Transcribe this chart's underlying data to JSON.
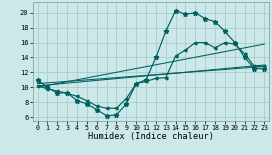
{
  "xlabel": "Humidex (Indice chaleur)",
  "bg_color": "#cce8e8",
  "grid_color": "#aacccc",
  "line_color": "#006060",
  "xlim": [
    -0.5,
    23.5
  ],
  "ylim": [
    5.5,
    21.5
  ],
  "xticks": [
    0,
    1,
    2,
    3,
    4,
    5,
    6,
    7,
    8,
    9,
    10,
    11,
    12,
    13,
    14,
    15,
    16,
    17,
    18,
    19,
    20,
    21,
    22,
    23
  ],
  "yticks": [
    6,
    8,
    10,
    12,
    14,
    16,
    18,
    20
  ],
  "main_y": [
    11.0,
    10.0,
    9.2,
    9.3,
    8.2,
    7.8,
    7.0,
    6.2,
    6.3,
    7.8,
    10.5,
    11.0,
    14.0,
    17.5,
    20.3,
    19.8,
    20.0,
    19.2,
    18.8,
    17.5,
    16.0,
    14.0,
    12.5,
    12.5
  ],
  "line2_y": [
    10.2,
    9.8,
    9.5,
    9.2,
    8.8,
    8.2,
    7.5,
    7.2,
    7.2,
    8.5,
    10.5,
    10.8,
    11.2,
    11.3,
    14.2,
    15.0,
    16.0,
    16.0,
    15.3,
    16.0,
    15.8,
    14.5,
    12.8,
    12.8
  ],
  "trend1_x": [
    0,
    23
  ],
  "trend1_y": [
    10.0,
    15.8
  ],
  "trend2_x": [
    0,
    23
  ],
  "trend2_y": [
    10.2,
    13.0
  ],
  "trend3_x": [
    0,
    23
  ],
  "trend3_y": [
    10.5,
    12.8
  ]
}
